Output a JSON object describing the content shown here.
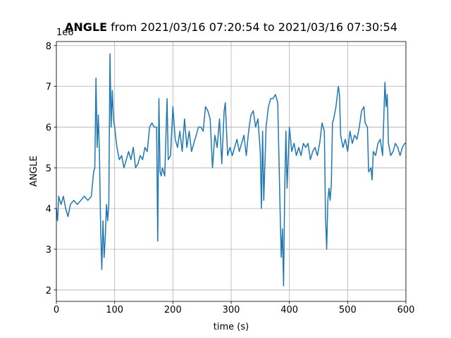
{
  "chart_data": {
    "type": "line",
    "title_bold": "ANGLE",
    "title": "from 2021/03/16 07:20:54 to 2021/03/16 07:30:54",
    "y_offset_label": "1e6",
    "x_label": "time (s)",
    "y_label": "ANGLE",
    "color": "#1f77b4",
    "grid": true,
    "xlim": [
      0,
      600
    ],
    "xticks": [
      0,
      100,
      200,
      300,
      400,
      500,
      600
    ],
    "ylim": [
      1.72,
      8.1
    ],
    "yticks": [
      2,
      3,
      4,
      5,
      6,
      7,
      8
    ],
    "x": [
      0,
      2,
      4,
      8,
      12,
      16,
      20,
      24,
      30,
      36,
      42,
      48,
      54,
      60,
      64,
      66,
      68,
      70,
      72,
      74,
      76,
      78,
      80,
      82,
      84,
      86,
      88,
      90,
      92,
      94,
      96,
      98,
      100,
      104,
      108,
      112,
      116,
      120,
      124,
      128,
      132,
      136,
      140,
      144,
      148,
      152,
      156,
      160,
      164,
      168,
      172,
      174,
      176,
      178,
      180,
      182,
      186,
      190,
      192,
      196,
      200,
      204,
      208,
      212,
      216,
      220,
      224,
      228,
      232,
      236,
      240,
      244,
      248,
      252,
      256,
      260,
      264,
      268,
      272,
      276,
      280,
      284,
      288,
      290,
      294,
      298,
      302,
      306,
      310,
      314,
      318,
      322,
      326,
      330,
      334,
      338,
      342,
      346,
      350,
      352,
      354,
      356,
      360,
      364,
      368,
      372,
      376,
      380,
      384,
      386,
      388,
      390,
      392,
      394,
      396,
      400,
      404,
      408,
      412,
      416,
      420,
      424,
      428,
      432,
      436,
      440,
      444,
      448,
      452,
      456,
      460,
      462,
      464,
      466,
      468,
      470,
      472,
      474,
      476,
      480,
      484,
      486,
      488,
      492,
      496,
      500,
      504,
      508,
      512,
      516,
      520,
      524,
      528,
      530,
      534,
      536,
      540,
      542,
      544,
      548,
      552,
      556,
      560,
      564,
      566,
      568,
      570,
      574,
      578,
      582,
      586,
      590,
      594,
      598,
      600
    ],
    "values": [
      4.0,
      3.7,
      4.3,
      4.1,
      4.3,
      4.0,
      3.8,
      4.1,
      4.2,
      4.1,
      4.2,
      4.3,
      4.2,
      4.3,
      4.9,
      5.0,
      7.2,
      5.5,
      6.3,
      5.3,
      3.5,
      2.5,
      3.7,
      2.8,
      3.3,
      4.1,
      3.7,
      4.1,
      7.8,
      6.0,
      6.9,
      6.2,
      6.0,
      5.5,
      5.2,
      5.3,
      5.0,
      5.2,
      5.4,
      5.2,
      5.5,
      5.0,
      5.1,
      5.3,
      5.2,
      5.5,
      5.4,
      6.0,
      6.1,
      6.0,
      6.0,
      3.2,
      6.7,
      4.9,
      4.8,
      5.0,
      4.8,
      6.7,
      5.2,
      5.3,
      6.5,
      5.7,
      5.5,
      5.9,
      5.4,
      6.2,
      5.5,
      5.9,
      5.4,
      5.6,
      5.8,
      6.0,
      6.0,
      5.9,
      6.5,
      6.4,
      6.2,
      5.0,
      5.8,
      5.5,
      6.2,
      5.1,
      6.4,
      6.6,
      5.3,
      5.5,
      5.3,
      5.5,
      5.7,
      5.4,
      5.6,
      5.8,
      5.3,
      5.9,
      6.3,
      6.4,
      6.0,
      6.2,
      5.4,
      4.0,
      5.9,
      4.2,
      6.0,
      6.5,
      6.7,
      6.7,
      6.8,
      6.6,
      4.0,
      2.8,
      3.5,
      2.1,
      4.5,
      5.9,
      4.5,
      6.0,
      5.4,
      5.6,
      5.3,
      5.5,
      5.3,
      5.6,
      5.5,
      5.6,
      5.2,
      5.4,
      5.5,
      5.3,
      5.6,
      6.1,
      5.9,
      3.8,
      3.0,
      4.2,
      4.5,
      4.2,
      4.6,
      6.1,
      6.2,
      6.5,
      7.0,
      6.8,
      5.8,
      5.5,
      5.7,
      5.4,
      5.9,
      5.6,
      5.8,
      5.7,
      6.0,
      6.4,
      6.5,
      6.1,
      6.0,
      4.9,
      5.0,
      4.7,
      5.4,
      5.3,
      5.6,
      5.7,
      5.3,
      7.1,
      6.5,
      6.8,
      5.6,
      5.3,
      5.4,
      5.6,
      5.5,
      5.3,
      5.5,
      5.6,
      5.6
    ]
  }
}
